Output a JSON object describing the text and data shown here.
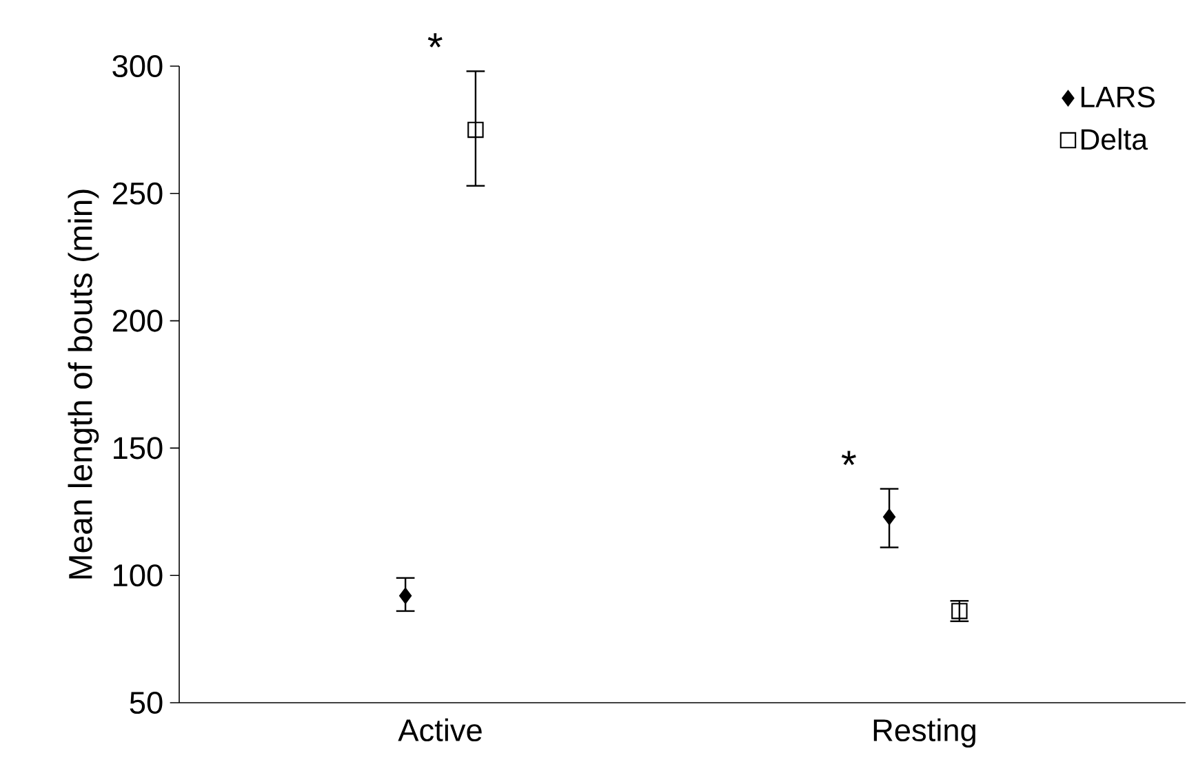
{
  "chart_data": {
    "type": "scatter",
    "ylabel": "Mean length of bouts (min)",
    "categories": [
      "Active",
      "Resting"
    ],
    "series": [
      {
        "name": "LARS",
        "color": "#000000",
        "marker": "diamond",
        "values": [
          92,
          123
        ],
        "errors": [
          [
            86,
            99
          ],
          [
            111,
            134
          ]
        ]
      },
      {
        "name": "Delta",
        "color": "#000000",
        "marker": "square",
        "values": [
          275,
          86
        ],
        "errors": [
          [
            253,
            298
          ],
          [
            82,
            90
          ]
        ]
      }
    ],
    "ylim": [
      50,
      300
    ],
    "yticks": [
      50,
      100,
      150,
      200,
      250,
      300
    ],
    "legend": "top right",
    "grid": false,
    "annotations": [
      "*",
      "*"
    ]
  }
}
